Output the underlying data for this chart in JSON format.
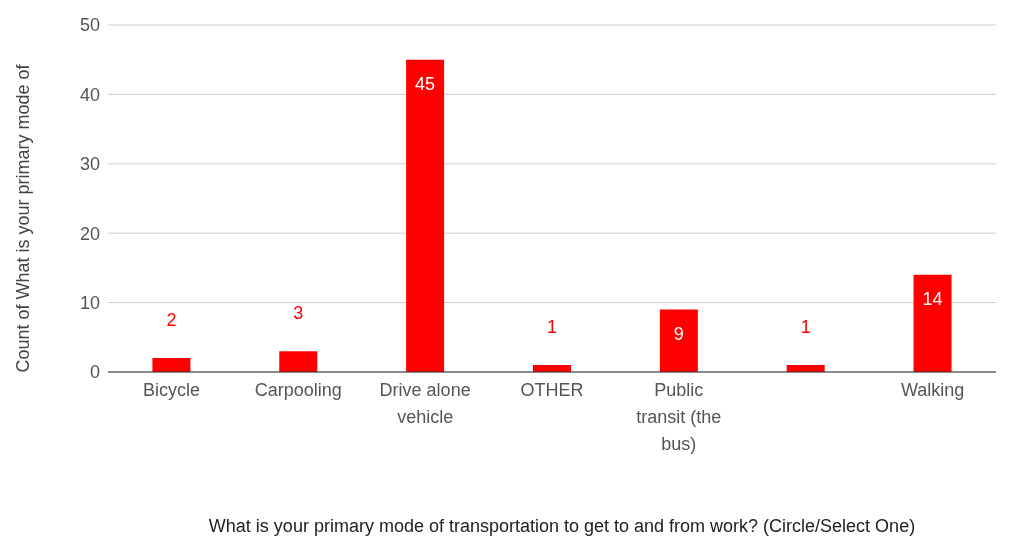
{
  "chart_data": {
    "type": "bar",
    "xlabel": "What is your primary mode of transportation to get to and from work?  (Circle/Select One)",
    "ylabel": "Count of What is your primary mode of",
    "categories": [
      "Bicycle",
      "Carpooling",
      "Drive alone vehicle",
      "OTHER",
      "Public transit (the bus)",
      null,
      "Walking"
    ],
    "values": [
      2,
      3,
      45,
      1,
      9,
      1,
      14
    ],
    "color": "#ff0000",
    "ylim": [
      0,
      50
    ],
    "yticks": [
      0,
      10,
      20,
      30,
      40,
      50
    ],
    "grid": "y",
    "data_labels": true
  }
}
